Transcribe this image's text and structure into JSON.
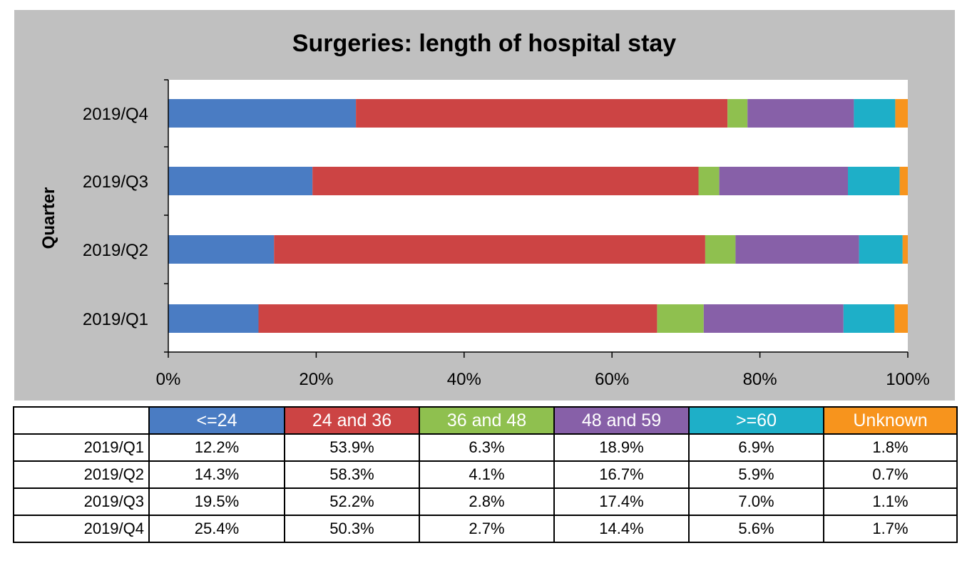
{
  "chart_data": {
    "type": "bar",
    "orientation": "horizontal",
    "stacked": "percent",
    "title": "Surgeries: length of hospital stay",
    "ylabel": "Quarter",
    "xlabel": "",
    "categories": [
      "2019/Q1",
      "2019/Q2",
      "2019/Q3",
      "2019/Q4"
    ],
    "xlim": [
      0,
      100
    ],
    "x_ticks": [
      "0%",
      "20%",
      "40%",
      "60%",
      "80%",
      "100%"
    ],
    "grid": false,
    "series": [
      {
        "name": "<=24",
        "color": "#4a7cc3",
        "values": [
          12.2,
          14.3,
          19.5,
          25.4
        ],
        "labels": [
          "12.2%",
          "14.3%",
          "19.5%",
          "25.4%"
        ]
      },
      {
        "name": "24 and 36",
        "color": "#cc4444",
        "values": [
          53.9,
          58.3,
          52.2,
          50.3
        ],
        "labels": [
          "53.9%",
          "58.3%",
          "52.2%",
          "50.3%"
        ]
      },
      {
        "name": "36 and 48",
        "color": "#8fc04f",
        "values": [
          6.3,
          4.1,
          2.8,
          2.7
        ],
        "labels": [
          "6.3%",
          "4.1%",
          "2.8%",
          "2.7%"
        ]
      },
      {
        "name": "48 and 59",
        "color": "#8760a8",
        "values": [
          18.9,
          16.7,
          17.4,
          14.4
        ],
        "labels": [
          "18.9%",
          "16.7%",
          "17.4%",
          "14.4%"
        ]
      },
      {
        "name": ">=60",
        "color": "#1eafc8",
        "values": [
          6.9,
          5.9,
          7.0,
          5.6
        ],
        "labels": [
          "6.9%",
          "5.9%",
          "7.0%",
          "5.6%"
        ]
      },
      {
        "name": "Unknown",
        "color": "#f7941d",
        "values": [
          1.8,
          0.7,
          1.1,
          1.7
        ],
        "labels": [
          "1.8%",
          "0.7%",
          "1.1%",
          "1.7%"
        ]
      }
    ],
    "legend": "data-table below chart"
  }
}
